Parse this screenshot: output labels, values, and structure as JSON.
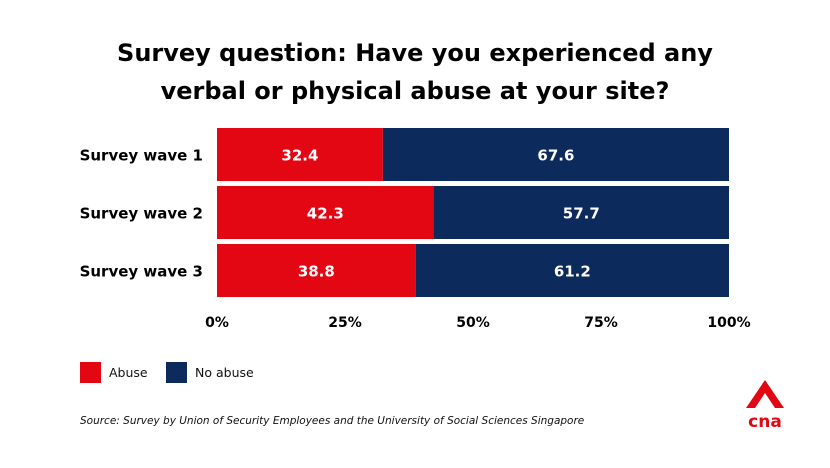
{
  "chart_data": {
    "type": "bar",
    "orientation": "horizontal",
    "stacked": true,
    "title_lines": [
      "Survey question: Have you experienced any",
      "verbal or physical abuse at your site?"
    ],
    "categories": [
      "Survey wave 1",
      "Survey wave 2",
      "Survey wave 3"
    ],
    "series": [
      {
        "name": "Abuse",
        "color": "#e30613",
        "values": [
          32.4,
          42.3,
          38.8
        ],
        "labels": [
          "32.4",
          "42.3",
          "38.8"
        ]
      },
      {
        "name": "No abuse",
        "color": "#0d2a5c",
        "values": [
          67.6,
          57.7,
          61.2
        ],
        "labels": [
          "67.6",
          "57.7",
          "61.2"
        ]
      }
    ],
    "xlim": [
      0,
      100
    ],
    "xticks": [
      0,
      25,
      50,
      75,
      100
    ],
    "xtick_labels": [
      "0%",
      "25%",
      "50%",
      "75%",
      "100%"
    ],
    "grid": false,
    "legend": "bottom-left"
  },
  "source": "Source: Survey by Union of Security Employees and the University of Social Sciences Singapore",
  "logo": {
    "name": "cna-logo-icon",
    "text": "cna",
    "color": "#e30613"
  }
}
